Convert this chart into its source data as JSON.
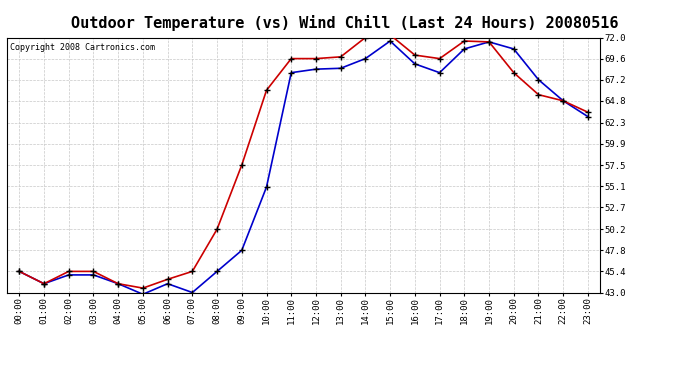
{
  "title": "Outdoor Temperature (vs) Wind Chill (Last 24 Hours) 20080516",
  "copyright": "Copyright 2008 Cartronics.com",
  "x_labels": [
    "00:00",
    "01:00",
    "02:00",
    "03:00",
    "04:00",
    "05:00",
    "06:00",
    "07:00",
    "08:00",
    "09:00",
    "10:00",
    "11:00",
    "12:00",
    "13:00",
    "14:00",
    "15:00",
    "16:00",
    "17:00",
    "18:00",
    "19:00",
    "20:00",
    "21:00",
    "22:00",
    "23:00"
  ],
  "temp": [
    45.4,
    44.0,
    45.4,
    45.4,
    44.0,
    43.5,
    44.5,
    45.4,
    50.2,
    57.5,
    66.0,
    69.6,
    69.6,
    69.8,
    72.0,
    72.3,
    70.0,
    69.6,
    71.6,
    71.5,
    68.0,
    65.5,
    64.8,
    63.5
  ],
  "windchill": [
    45.4,
    44.0,
    45.0,
    45.0,
    44.0,
    42.8,
    44.0,
    43.0,
    45.4,
    47.8,
    55.0,
    68.0,
    68.4,
    68.5,
    69.6,
    71.6,
    69.0,
    68.0,
    70.7,
    71.5,
    70.7,
    67.2,
    64.8,
    63.0
  ],
  "temp_color": "#cc0000",
  "windchill_color": "#0000cc",
  "marker": "+",
  "marker_color": "#000000",
  "bg_color": "#ffffff",
  "plot_bg_color": "#ffffff",
  "grid_color": "#c8c8c8",
  "grid_style": "--",
  "ylim": [
    43.0,
    72.0
  ],
  "yticks": [
    43.0,
    45.4,
    47.8,
    50.2,
    52.7,
    55.1,
    57.5,
    59.9,
    62.3,
    64.8,
    67.2,
    69.6,
    72.0
  ],
  "title_fontsize": 11,
  "copyright_fontsize": 6,
  "tick_fontsize": 6.5,
  "line_width": 1.2,
  "marker_size": 4
}
